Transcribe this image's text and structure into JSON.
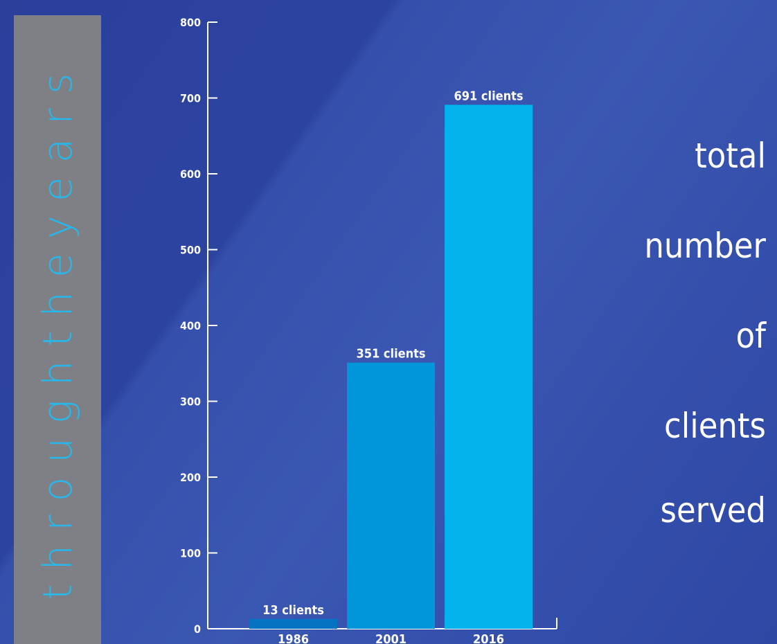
{
  "sidebar": {
    "text": "throughtheyears"
  },
  "side_caption": [
    "total",
    "number",
    "of",
    "clients",
    "served"
  ],
  "chart_data": {
    "type": "bar",
    "categories": [
      "1986",
      "2001",
      "2016"
    ],
    "values": [
      13,
      351,
      691
    ],
    "data_labels": [
      "13 clients",
      "351 clients",
      "691 clients"
    ],
    "colors": [
      "#0673c2",
      "#0196da",
      "#03b3ec"
    ],
    "ylim": [
      0,
      800
    ],
    "yticks": [
      0,
      100,
      200,
      300,
      400,
      500,
      600,
      700,
      800
    ],
    "grid": false
  }
}
